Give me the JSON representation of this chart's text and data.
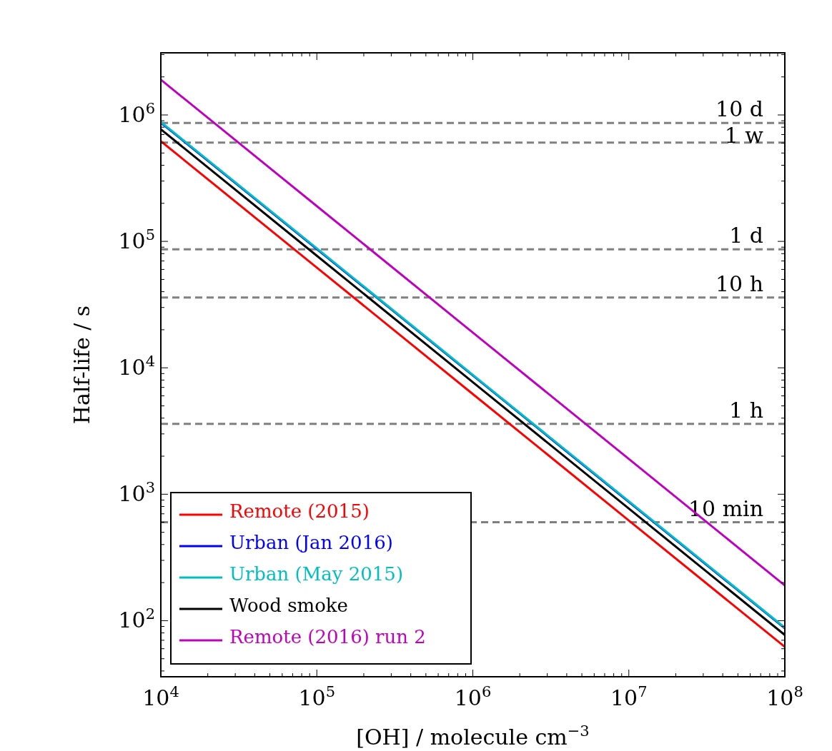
{
  "chart_data": {
    "type": "line",
    "xlabel": "[OH] / molecule cm$^{−3}$",
    "ylabel": "Half-life / s",
    "x": [
      10000,
      100000,
      1000000,
      10000000,
      100000000
    ],
    "series": [
      {
        "name": "Remote (2015)",
        "color": "#ff0000",
        "values": [
          620000,
          62000,
          6200,
          620,
          62
        ]
      },
      {
        "name": "Urban (Jan 2016)",
        "color": "#0000ff",
        "values": [
          870000,
          87000,
          8700,
          870,
          87
        ]
      },
      {
        "name": "Urban (May 2015)",
        "color": "#00bfbf",
        "values": [
          880000,
          88000,
          8800,
          880,
          88
        ]
      },
      {
        "name": "Wood smoke",
        "color": "#000000",
        "values": [
          770000,
          77000,
          7700,
          770,
          77
        ]
      },
      {
        "name": "Remote (2016) run 2",
        "color": "#bf00bf",
        "values": [
          1900000,
          190000,
          19000,
          1900,
          190
        ]
      }
    ],
    "log": "xy",
    "xlim": [
      10000,
      100000000
    ],
    "ylim": [
      36,
      3100000
    ],
    "xticks": [
      {
        "value": 10000,
        "label": "10$^{4}$"
      },
      {
        "value": 20000,
        "label": null
      },
      {
        "value": 30000,
        "label": null
      },
      {
        "value": 40000,
        "label": null
      },
      {
        "value": 50000,
        "label": null
      },
      {
        "value": 60000,
        "label": null
      },
      {
        "value": 70000,
        "label": null
      },
      {
        "value": 80000,
        "label": null
      },
      {
        "value": 90000,
        "label": null
      },
      {
        "value": 100000,
        "label": "10$^{5}$"
      },
      {
        "value": 200000,
        "label": null
      },
      {
        "value": 300000,
        "label": null
      },
      {
        "value": 400000,
        "label": null
      },
      {
        "value": 500000,
        "label": null
      },
      {
        "value": 600000,
        "label": null
      },
      {
        "value": 700000,
        "label": null
      },
      {
        "value": 800000,
        "label": null
      },
      {
        "value": 900000,
        "label": null
      },
      {
        "value": 1000000,
        "label": "10$^{6}$"
      },
      {
        "value": 2000000,
        "label": null
      },
      {
        "value": 3000000,
        "label": null
      },
      {
        "value": 4000000,
        "label": null
      },
      {
        "value": 5000000,
        "label": null
      },
      {
        "value": 6000000,
        "label": null
      },
      {
        "value": 7000000,
        "label": null
      },
      {
        "value": 8000000,
        "label": null
      },
      {
        "value": 9000000,
        "label": null
      },
      {
        "value": 10000000,
        "label": "10$^{7}$"
      },
      {
        "value": 20000000,
        "label": null
      },
      {
        "value": 30000000,
        "label": null
      },
      {
        "value": 40000000,
        "label": null
      },
      {
        "value": 50000000,
        "label": null
      },
      {
        "value": 60000000,
        "label": null
      },
      {
        "value": 70000000,
        "label": null
      },
      {
        "value": 80000000,
        "label": null
      },
      {
        "value": 90000000,
        "label": null
      },
      {
        "value": 100000000,
        "label": "10$^{8}$"
      }
    ],
    "yticks": [
      {
        "value": 40,
        "label": null
      },
      {
        "value": 50,
        "label": null
      },
      {
        "value": 60,
        "label": null
      },
      {
        "value": 70,
        "label": null
      },
      {
        "value": 80,
        "label": null
      },
      {
        "value": 90,
        "label": null
      },
      {
        "value": 100,
        "label": "10$^{2}$"
      },
      {
        "value": 200,
        "label": null
      },
      {
        "value": 300,
        "label": null
      },
      {
        "value": 400,
        "label": null
      },
      {
        "value": 500,
        "label": null
      },
      {
        "value": 600,
        "label": null
      },
      {
        "value": 700,
        "label": null
      },
      {
        "value": 800,
        "label": null
      },
      {
        "value": 900,
        "label": null
      },
      {
        "value": 1000,
        "label": "10$^{3}$"
      },
      {
        "value": 2000,
        "label": null
      },
      {
        "value": 3000,
        "label": null
      },
      {
        "value": 4000,
        "label": null
      },
      {
        "value": 5000,
        "label": null
      },
      {
        "value": 6000,
        "label": null
      },
      {
        "value": 7000,
        "label": null
      },
      {
        "value": 8000,
        "label": null
      },
      {
        "value": 9000,
        "label": null
      },
      {
        "value": 10000,
        "label": "10$^{4}$"
      },
      {
        "value": 20000,
        "label": null
      },
      {
        "value": 30000,
        "label": null
      },
      {
        "value": 40000,
        "label": null
      },
      {
        "value": 50000,
        "label": null
      },
      {
        "value": 60000,
        "label": null
      },
      {
        "value": 70000,
        "label": null
      },
      {
        "value": 80000,
        "label": null
      },
      {
        "value": 90000,
        "label": null
      },
      {
        "value": 100000,
        "label": "10$^{5}$"
      },
      {
        "value": 200000,
        "label": null
      },
      {
        "value": 300000,
        "label": null
      },
      {
        "value": 400000,
        "label": null
      },
      {
        "value": 500000,
        "label": null
      },
      {
        "value": 600000,
        "label": null
      },
      {
        "value": 700000,
        "label": null
      },
      {
        "value": 800000,
        "label": null
      },
      {
        "value": 900000,
        "label": null
      },
      {
        "value": 1000000,
        "label": "10$^{6}$"
      },
      {
        "value": 2000000,
        "label": null
      },
      {
        "value": 3000000,
        "label": null
      }
    ],
    "ref_lines": [
      {
        "axis": "y",
        "value": 864000,
        "label": "10 d",
        "color": "#808080",
        "line_style": "dashed"
      },
      {
        "axis": "y",
        "value": 604800,
        "label": "1 w",
        "color": "#808080",
        "line_style": "dashed"
      },
      {
        "axis": "y",
        "value": 86400,
        "label": "1 d",
        "color": "#808080",
        "line_style": "dashed"
      },
      {
        "axis": "y",
        "value": 36000,
        "label": "10 h",
        "color": "#808080",
        "line_style": "dashed"
      },
      {
        "axis": "y",
        "value": 3600,
        "label": "1 h",
        "color": "#808080",
        "line_style": "dashed"
      },
      {
        "axis": "y",
        "value": 600,
        "label": "10 min",
        "color": "#808080",
        "line_style": "dashed"
      }
    ],
    "legend": "bottom left",
    "grid": false,
    "marker": "none",
    "line_style": "solid"
  }
}
